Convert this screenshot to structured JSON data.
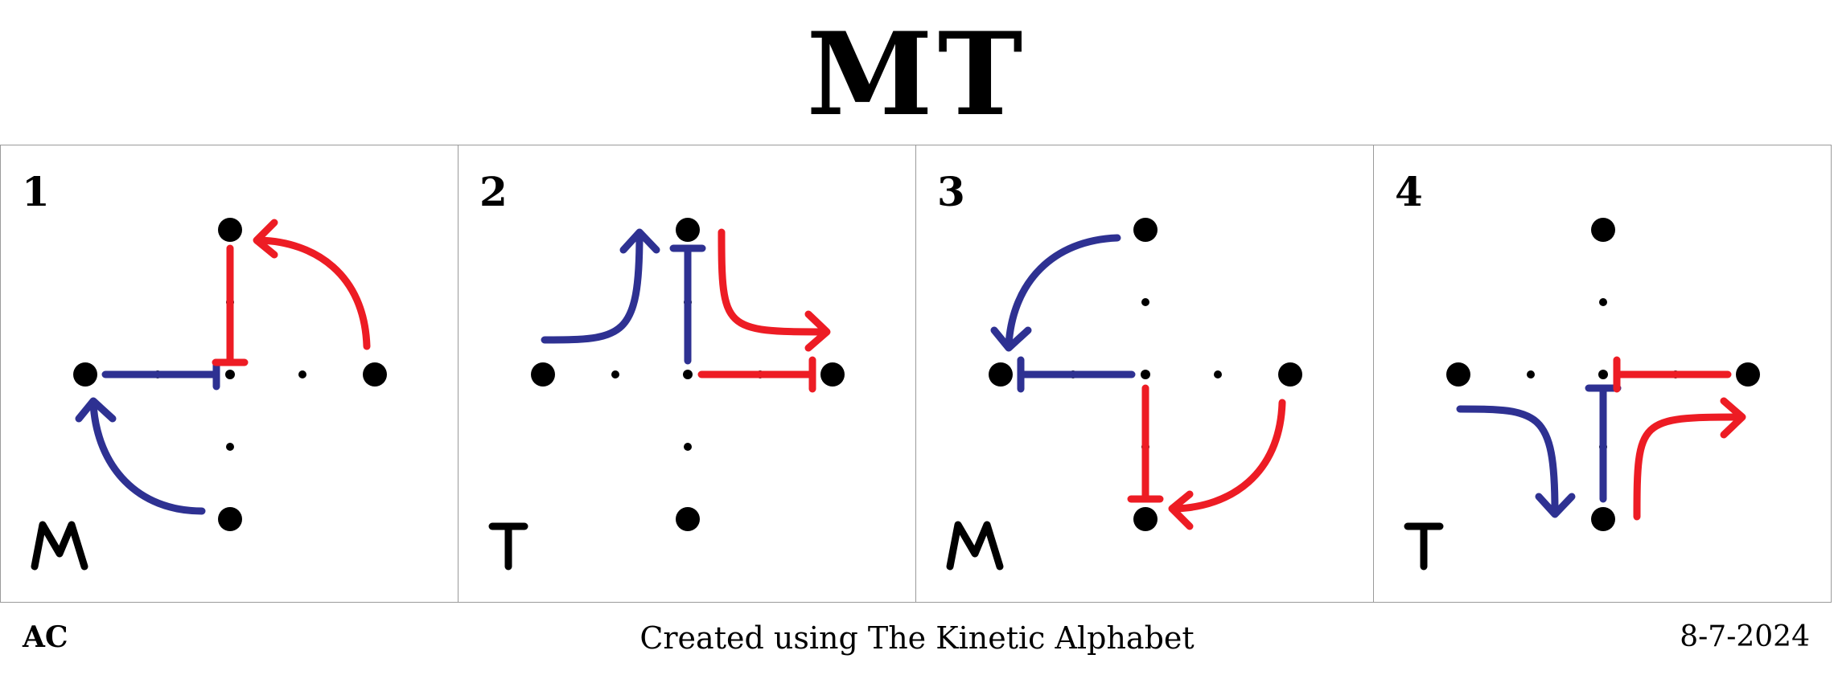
{
  "title": "MT",
  "colors": {
    "blue": "#2e3192",
    "red": "#ed1c24",
    "dot": "#000000"
  },
  "panels": [
    {
      "number": "1",
      "letter": "M"
    },
    {
      "number": "2",
      "letter": "T"
    },
    {
      "number": "3",
      "letter": "M"
    },
    {
      "number": "4",
      "letter": "T"
    }
  ],
  "footer": {
    "left": "AC",
    "center": "Created using The Kinetic Alphabet",
    "right": "8-7-2024"
  }
}
